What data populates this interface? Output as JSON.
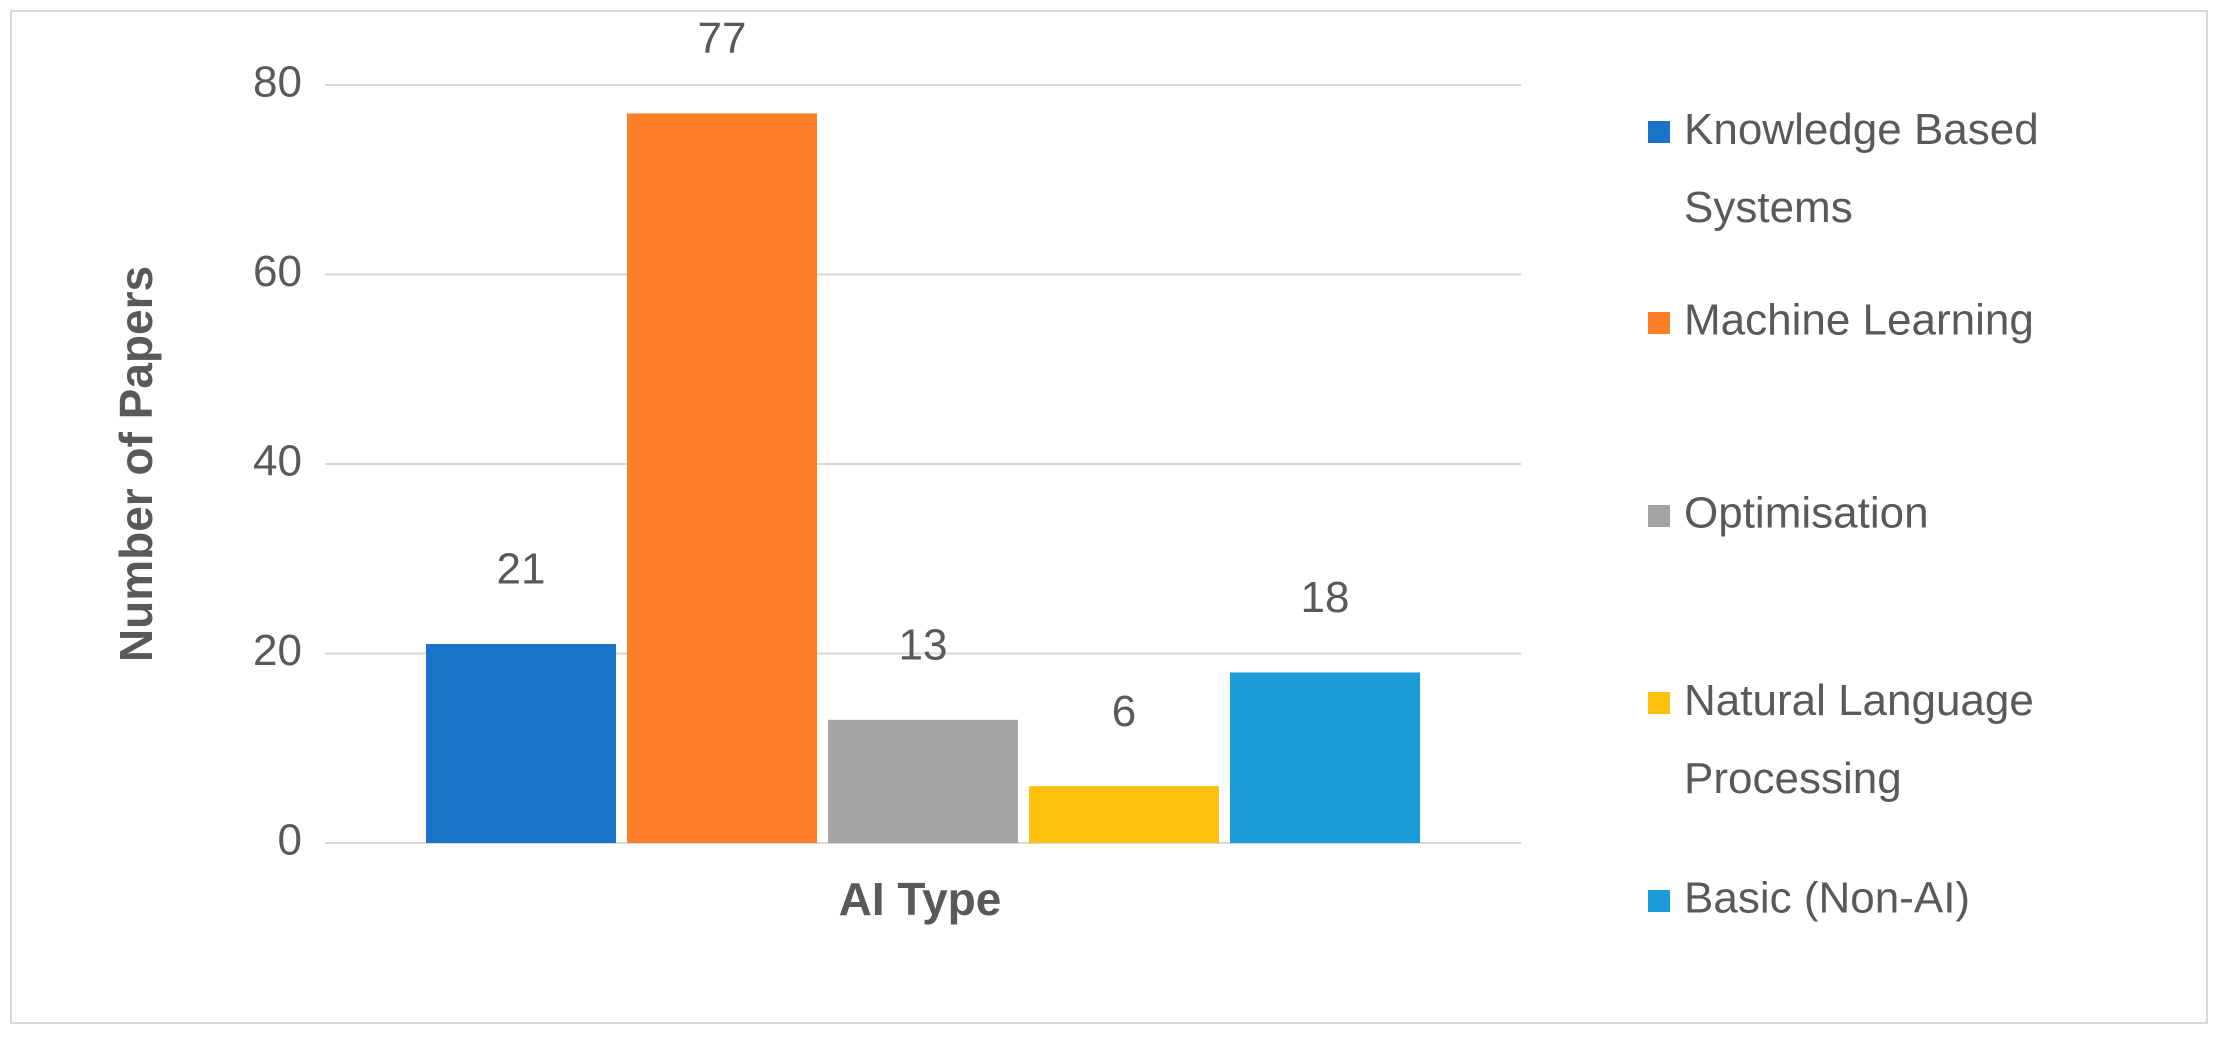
{
  "chart_data": {
    "type": "bar",
    "x_label": "AI Type",
    "y_label": "Number of Papers",
    "categories": [
      null
    ],
    "series": [
      {
        "name": "Knowledge Based Systems",
        "color": "#1a73c9",
        "values": [
          21
        ]
      },
      {
        "name": "Machine Learning",
        "color": "#fd7f27",
        "values": [
          77
        ]
      },
      {
        "name": "Optimisation",
        "color": "#a5a5a5",
        "values": [
          13
        ]
      },
      {
        "name": "Natural Language Processing",
        "color": "#fdc00f",
        "values": [
          6
        ]
      },
      {
        "name": "Basic (Non-AI)",
        "color": "#1b9bd7",
        "values": [
          18
        ]
      }
    ],
    "ylim": [
      0,
      80
    ],
    "yticks": [
      0,
      20,
      40,
      60,
      80
    ],
    "grid": true,
    "legend": "right",
    "data_labels": true
  }
}
